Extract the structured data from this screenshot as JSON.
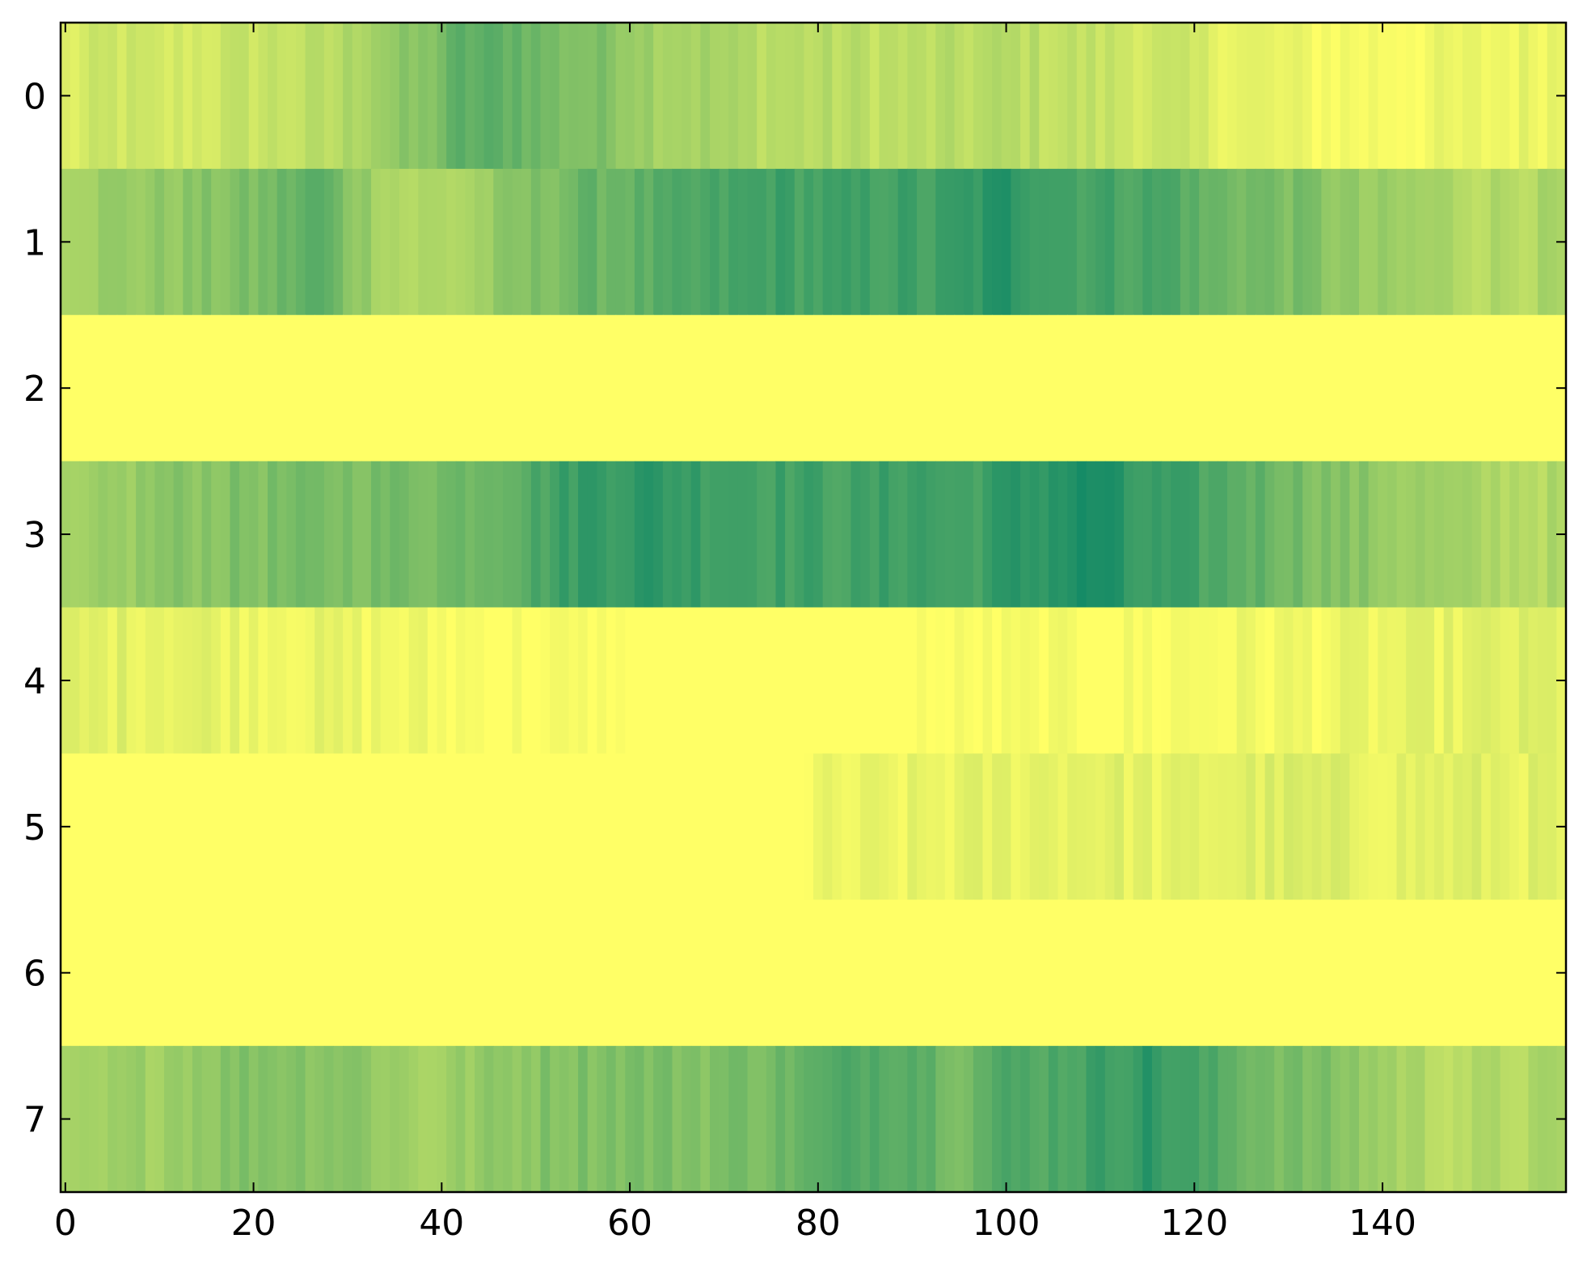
{
  "chart_data": {
    "type": "heatmap",
    "title": "",
    "xlabel": "",
    "ylabel": "",
    "colormap": "summer_r",
    "colors": {
      "low": "#ffff66",
      "high": "#008066",
      "axis": "#000000",
      "background": "#ffffff"
    },
    "n_cols": 160,
    "n_rows": 8,
    "xlim": [
      -0.5,
      159.5
    ],
    "ylim": [
      7.5,
      -0.5
    ],
    "value_range": [
      0,
      1
    ],
    "x_ticks": [
      0,
      20,
      40,
      60,
      80,
      100,
      120,
      140
    ],
    "x_tick_labels": [
      "0",
      "20",
      "40",
      "60",
      "80",
      "100",
      "120",
      "140"
    ],
    "y_ticks": [
      0,
      1,
      2,
      3,
      4,
      5,
      6,
      7
    ],
    "y_tick_labels": [
      "0",
      "1",
      "2",
      "3",
      "4",
      "5",
      "6",
      "7"
    ],
    "rows": [
      {
        "row": 0,
        "profile": [
          [
            0,
            0.12
          ],
          [
            5,
            0.2
          ],
          [
            10,
            0.15
          ],
          [
            20,
            0.22
          ],
          [
            28,
            0.25
          ],
          [
            33,
            0.4
          ],
          [
            38,
            0.45
          ],
          [
            42,
            0.62
          ],
          [
            48,
            0.62
          ],
          [
            52,
            0.52
          ],
          [
            58,
            0.48
          ],
          [
            63,
            0.38
          ],
          [
            68,
            0.35
          ],
          [
            72,
            0.3
          ],
          [
            80,
            0.27
          ],
          [
            90,
            0.25
          ],
          [
            100,
            0.28
          ],
          [
            110,
            0.22
          ],
          [
            118,
            0.18
          ],
          [
            125,
            0.1
          ],
          [
            132,
            0.05
          ],
          [
            140,
            0.04
          ],
          [
            150,
            0.06
          ],
          [
            159,
            0.1
          ]
        ]
      },
      {
        "row": 1,
        "profile": [
          [
            0,
            0.38
          ],
          [
            10,
            0.42
          ],
          [
            20,
            0.5
          ],
          [
            27,
            0.65
          ],
          [
            30,
            0.48
          ],
          [
            36,
            0.3
          ],
          [
            42,
            0.32
          ],
          [
            48,
            0.45
          ],
          [
            55,
            0.58
          ],
          [
            62,
            0.62
          ],
          [
            68,
            0.68
          ],
          [
            75,
            0.75
          ],
          [
            82,
            0.72
          ],
          [
            88,
            0.75
          ],
          [
            92,
            0.72
          ],
          [
            100,
            0.85
          ],
          [
            106,
            0.75
          ],
          [
            112,
            0.72
          ],
          [
            118,
            0.7
          ],
          [
            121,
            0.58
          ],
          [
            126,
            0.55
          ],
          [
            132,
            0.5
          ],
          [
            138,
            0.38
          ],
          [
            145,
            0.35
          ],
          [
            150,
            0.3
          ],
          [
            159,
            0.32
          ]
        ]
      },
      {
        "row": 2,
        "profile": [
          [
            0,
            0.0
          ],
          [
            159,
            0.0
          ]
        ]
      },
      {
        "row": 3,
        "profile": [
          [
            0,
            0.3
          ],
          [
            10,
            0.45
          ],
          [
            20,
            0.5
          ],
          [
            30,
            0.52
          ],
          [
            40,
            0.55
          ],
          [
            48,
            0.65
          ],
          [
            55,
            0.8
          ],
          [
            62,
            0.82
          ],
          [
            68,
            0.78
          ],
          [
            75,
            0.75
          ],
          [
            85,
            0.72
          ],
          [
            90,
            0.78
          ],
          [
            95,
            0.72
          ],
          [
            100,
            0.8
          ],
          [
            105,
            0.85
          ],
          [
            110,
            0.9
          ],
          [
            113,
            0.78
          ],
          [
            120,
            0.72
          ],
          [
            128,
            0.6
          ],
          [
            135,
            0.48
          ],
          [
            142,
            0.4
          ],
          [
            150,
            0.32
          ],
          [
            159,
            0.3
          ]
        ]
      },
      {
        "row": 4,
        "profile": [
          [
            0,
            0.1
          ],
          [
            10,
            0.12
          ],
          [
            20,
            0.09
          ],
          [
            30,
            0.07
          ],
          [
            36,
            0.05
          ],
          [
            45,
            0.02
          ],
          [
            50,
            0.01
          ],
          [
            60,
            0.0
          ],
          [
            90,
            0.0
          ],
          [
            100,
            0.01
          ],
          [
            110,
            0.01
          ],
          [
            120,
            0.04
          ],
          [
            130,
            0.05
          ],
          [
            140,
            0.07
          ],
          [
            150,
            0.1
          ],
          [
            159,
            0.12
          ]
        ]
      },
      {
        "row": 5,
        "profile": [
          [
            0,
            0.0
          ],
          [
            78,
            0.0
          ],
          [
            80,
            0.05
          ],
          [
            90,
            0.07
          ],
          [
            100,
            0.1
          ],
          [
            110,
            0.12
          ],
          [
            118,
            0.08
          ],
          [
            122,
            0.11
          ],
          [
            130,
            0.13
          ],
          [
            140,
            0.1
          ],
          [
            150,
            0.12
          ],
          [
            159,
            0.1
          ]
        ]
      },
      {
        "row": 6,
        "profile": [
          [
            0,
            0.0
          ],
          [
            159,
            0.0
          ]
        ]
      },
      {
        "row": 7,
        "profile": [
          [
            0,
            0.3
          ],
          [
            10,
            0.4
          ],
          [
            20,
            0.5
          ],
          [
            30,
            0.48
          ],
          [
            38,
            0.35
          ],
          [
            45,
            0.42
          ],
          [
            52,
            0.5
          ],
          [
            60,
            0.52
          ],
          [
            68,
            0.5
          ],
          [
            75,
            0.55
          ],
          [
            80,
            0.62
          ],
          [
            85,
            0.7
          ],
          [
            90,
            0.68
          ],
          [
            95,
            0.55
          ],
          [
            100,
            0.68
          ],
          [
            105,
            0.7
          ],
          [
            110,
            0.75
          ],
          [
            115,
            0.82
          ],
          [
            118,
            0.75
          ],
          [
            125,
            0.6
          ],
          [
            130,
            0.52
          ],
          [
            135,
            0.48
          ],
          [
            140,
            0.38
          ],
          [
            145,
            0.3
          ],
          [
            150,
            0.28
          ],
          [
            159,
            0.32
          ]
        ]
      }
    ]
  }
}
